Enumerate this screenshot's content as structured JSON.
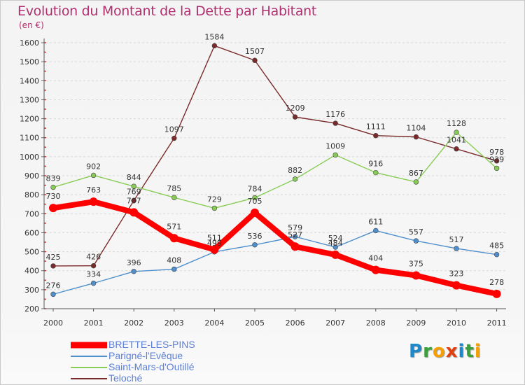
{
  "chart_data": {
    "type": "line",
    "title": "Evolution du Montant de la Dette par Habitant",
    "subtitle": "(en €)",
    "categories": [
      "2000",
      "2001",
      "2002",
      "2003",
      "2004",
      "2005",
      "2006",
      "2007",
      "2008",
      "2009",
      "2010",
      "2011"
    ],
    "ylim": [
      200,
      1600
    ],
    "yticks": [
      200,
      300,
      400,
      500,
      600,
      700,
      800,
      900,
      1000,
      1100,
      1200,
      1300,
      1400,
      1500,
      1600
    ],
    "grid": "horizontal dashed",
    "legend_position": "bottom-left",
    "series": [
      {
        "name": "BRETTE-LES-PINS",
        "color": "#ff0000",
        "values": [
          730,
          763,
          707,
          571,
          511,
          705,
          527,
          484,
          404,
          375,
          323,
          278
        ]
      },
      {
        "name": "Parigné-l'Evêque",
        "color": "#4f8fcc",
        "values": [
          276,
          334,
          396,
          408,
          499,
          536,
          579,
          524,
          611,
          557,
          517,
          485
        ]
      },
      {
        "name": "Saint-Mars-d'Outillé",
        "color": "#88cc55",
        "values": [
          839,
          902,
          844,
          785,
          729,
          784,
          882,
          1009,
          916,
          867,
          1128,
          939
        ]
      },
      {
        "name": "Teloché",
        "color": "#7a2a2a",
        "values": [
          425,
          426,
          769,
          1097,
          1584,
          1507,
          1209,
          1176,
          1111,
          1104,
          1041,
          978
        ]
      }
    ]
  },
  "logo": {
    "text": "Proxiti",
    "letters": [
      "P",
      "r",
      "o",
      "x",
      "i",
      "t",
      "i"
    ],
    "colors": [
      "#1e88c8",
      "#3aa03a",
      "#f5a000",
      "#e04010",
      "#1e88c8",
      "#3aa03a",
      "#f5a000"
    ]
  }
}
